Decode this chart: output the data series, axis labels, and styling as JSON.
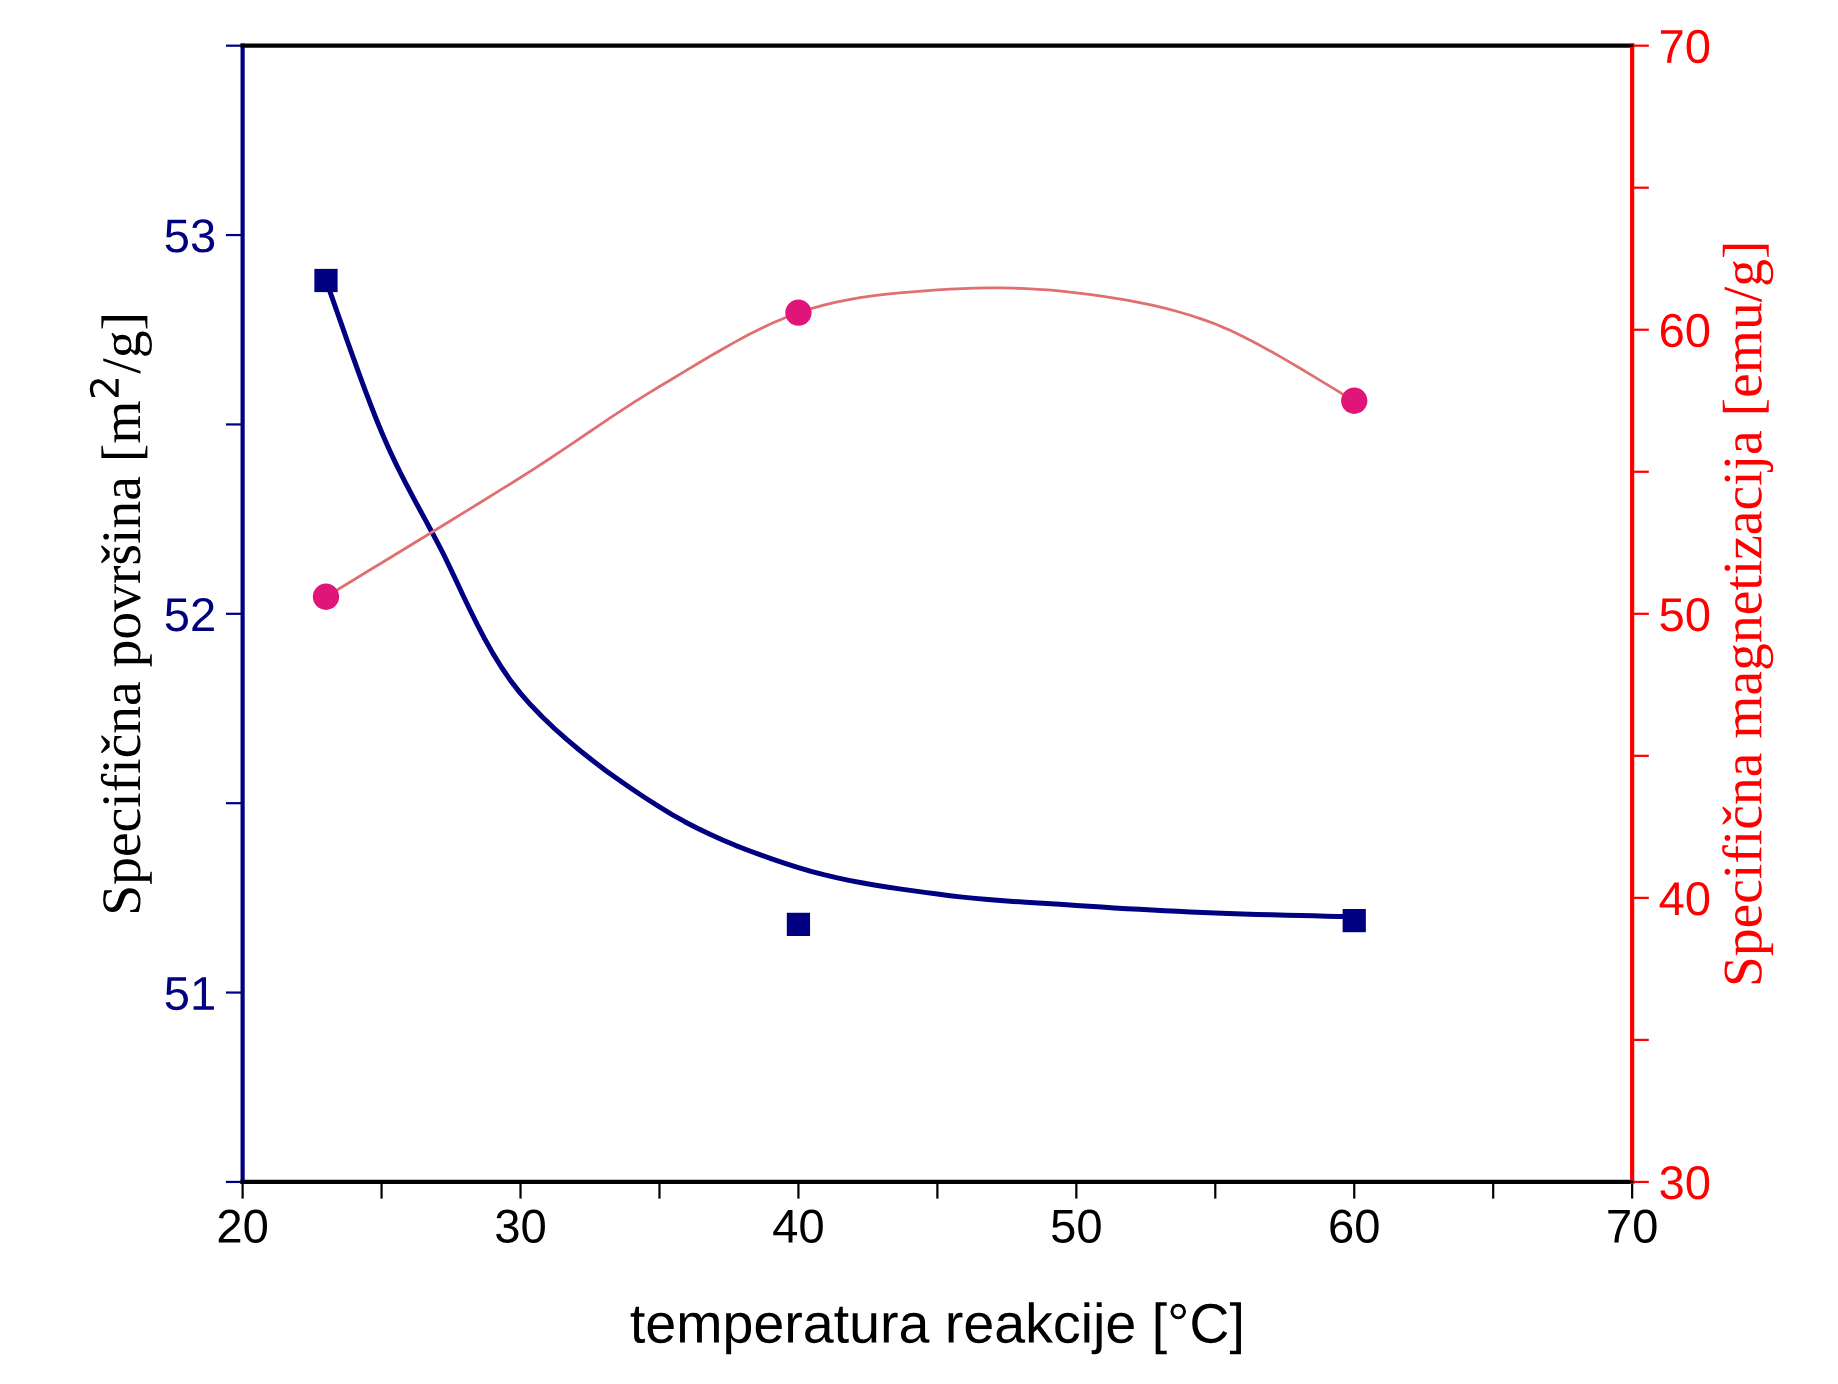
{
  "chart_data": {
    "type": "scatter",
    "xlabel": "temperatura reakcije [°C]",
    "ylabel": "Specifična površina [m$^{2}$/g]",
    "y2label": "Specifična magnetizacija [emu/g]",
    "series": [
      {
        "color": "#000080",
        "marker": "square",
        "x": [
          23,
          40,
          60
        ],
        "values": [
          52.88,
          51.18,
          51.19
        ]
      },
      {
        "type": "line",
        "color": "#000080",
        "x": [
          23,
          25,
          27,
          30,
          35,
          40,
          45,
          50,
          55,
          60
        ],
        "values": [
          52.88,
          52.48,
          52.19,
          51.79,
          51.49,
          51.33,
          51.26,
          51.23,
          51.21,
          51.2
        ]
      },
      {
        "color": "#e0157a",
        "marker": "circle",
        "axis": "y2",
        "x": [
          23,
          40,
          60
        ],
        "values": [
          50.6,
          60.6,
          57.5
        ]
      },
      {
        "type": "line",
        "color": "#e07070",
        "axis": "y2",
        "x": [
          23,
          30,
          35,
          40,
          45,
          50,
          55,
          60
        ],
        "values": [
          50.6,
          54.8,
          58.0,
          60.6,
          61.4,
          61.3,
          60.2,
          57.5
        ]
      }
    ],
    "xlim": [
      20,
      70
    ],
    "xticks": [
      20,
      {
        "value": 25,
        "label": null
      },
      30,
      {
        "value": 35,
        "label": null
      },
      40,
      {
        "value": 45,
        "label": null
      },
      50,
      {
        "value": 55,
        "label": null
      },
      60,
      {
        "value": 65,
        "label": null
      },
      70
    ],
    "ylim": [
      50.5,
      53.5
    ],
    "yticks": [
      {
        "value": 50.5,
        "label": null
      },
      51,
      {
        "value": 51.5,
        "label": null
      },
      52,
      {
        "value": 52.5,
        "label": null
      },
      53,
      {
        "value": 53.5,
        "label": null
      }
    ],
    "y2lim": [
      30,
      70
    ],
    "y2ticks": [
      30,
      {
        "value": 35,
        "label": null
      },
      40,
      {
        "value": 45,
        "label": null
      },
      50,
      {
        "value": 55,
        "label": null
      },
      60,
      {
        "value": 65,
        "label": null
      },
      70
    ],
    "grid": false,
    "legend": false
  }
}
